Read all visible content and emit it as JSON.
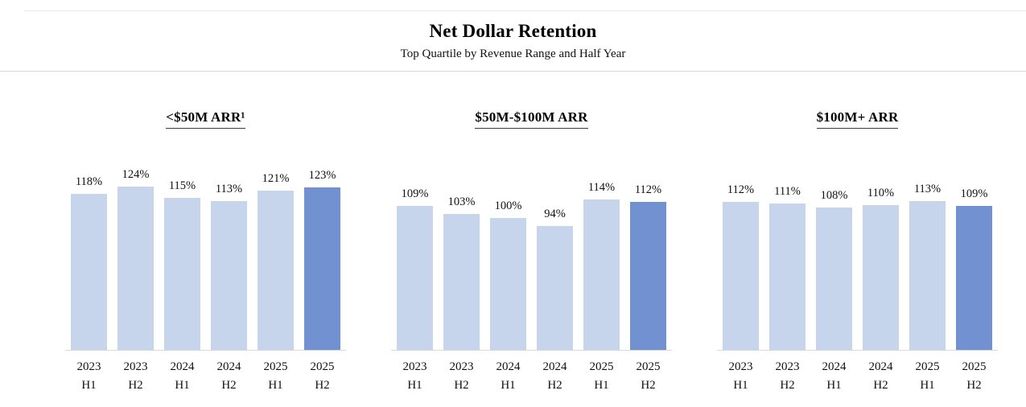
{
  "header": {
    "title": "Net Dollar Retention",
    "subtitle": "Top Quartile by Revenue Range and Half Year"
  },
  "chart_data": {
    "type": "bar",
    "title": "Net Dollar Retention",
    "subtitle": "Top Quartile by Revenue Range and Half Year",
    "categories": [
      {
        "year": "2023",
        "half": "H1"
      },
      {
        "year": "2023",
        "half": "H2"
      },
      {
        "year": "2024",
        "half": "H1"
      },
      {
        "year": "2024",
        "half": "H2"
      },
      {
        "year": "2025",
        "half": "H1"
      },
      {
        "year": "2025",
        "half": "H2"
      }
    ],
    "panels": [
      {
        "title": "<$50M ARR¹",
        "values": [
          118,
          124,
          115,
          113,
          121,
          123
        ]
      },
      {
        "title": "$50M-$100M ARR",
        "values": [
          109,
          103,
          100,
          94,
          114,
          112
        ]
      },
      {
        "title": "$100M+ ARR",
        "values": [
          112,
          111,
          108,
          110,
          113,
          109
        ]
      }
    ],
    "value_suffix": "%",
    "value_labels": true,
    "highlight_last_bar": true,
    "grid": false,
    "legend": "none",
    "xlabel": "",
    "ylabel": "",
    "colors": {
      "bar": "#c6d5ec",
      "bar_highlight": "#7191d0",
      "axis_line": "#d9d9d9",
      "divider_line": "#d6d6d6",
      "text": "#111111"
    }
  }
}
